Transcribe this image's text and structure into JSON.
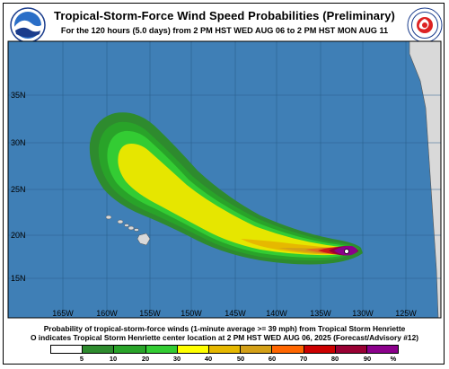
{
  "header": {
    "title": "Tropical-Storm-Force Wind Speed Probabilities (Preliminary)",
    "subtitle": "For the 120 hours (5.0 days) from 2 PM HST WED AUG 06 to 2 PM HST MON AUG 11"
  },
  "logos": {
    "left_text": "NOAA",
    "right_text": "NATIONAL WEATHER SERVICE"
  },
  "map": {
    "ocean_color": "#3f7fb6",
    "land_color": "#d9d9d9",
    "lat_labels": [
      "35N",
      "30N",
      "25N",
      "20N",
      "15N"
    ],
    "lon_labels": [
      "165W",
      "160W",
      "155W",
      "150W",
      "145W",
      "140W",
      "135W",
      "130W",
      "125W"
    ],
    "storm_marker": "O"
  },
  "captions": {
    "line1": "Probability of tropical-storm-force winds (1-minute average >= 39 mph) from Tropical Storm Henriette",
    "line2": "O indicates Tropical Storm Henriette center location at 2 PM HST WED AUG 06, 2025 (Forecast/Advisory #12)"
  },
  "legend": {
    "colors": [
      "#ffffff",
      "#2e8b2e",
      "#29a329",
      "#33cc33",
      "#ffff00",
      "#e6b800",
      "#d4a017",
      "#ff6600",
      "#cc0000",
      "#990033",
      "#8b008b"
    ],
    "labels": [
      "5",
      "10",
      "20",
      "30",
      "40",
      "50",
      "60",
      "70",
      "80",
      "90",
      "%"
    ]
  }
}
